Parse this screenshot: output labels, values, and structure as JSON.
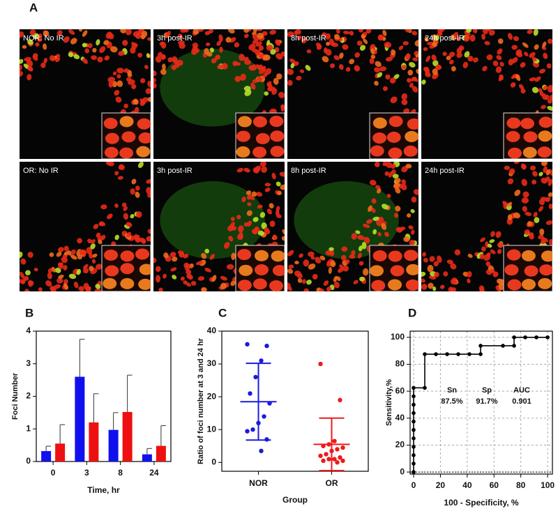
{
  "figure": {
    "panel_label": "A",
    "images": [
      "NOR: No IR",
      "3h post-IR",
      "8h post-IR",
      "24h post-IR",
      "OR: No IR",
      "3h post-IR",
      "8h post-IR",
      "24h post-IR"
    ]
  },
  "chart_data": [
    {
      "type": "bar",
      "panel_label": "B",
      "x_label": "Time, hr",
      "y_label": "Foci Number",
      "categories": [
        "0",
        "3",
        "8",
        "24"
      ],
      "series": [
        {
          "color": "#1010ee",
          "values": [
            0.32,
            2.6,
            0.97,
            0.22
          ],
          "errors": [
            0.15,
            1.15,
            0.53,
            0.18
          ]
        },
        {
          "color": "#ee1010",
          "values": [
            0.55,
            1.2,
            1.52,
            0.48
          ],
          "errors": [
            0.58,
            0.88,
            1.13,
            0.62
          ]
        }
      ],
      "ylim": [
        0,
        4
      ],
      "yticks": [
        0,
        1,
        2,
        3,
        4
      ]
    },
    {
      "type": "dot",
      "panel_label": "C",
      "x_label": "Group",
      "y_label": "Ratio of foci number at 3 and 24 hr",
      "groups": [
        {
          "name": "NOR",
          "color": "#1a1add",
          "values": [
            36,
            35.5,
            31,
            26,
            21,
            18,
            14,
            12,
            10,
            9.5,
            7,
            3.5
          ],
          "mean": 18.5,
          "sd": 11.7
        },
        {
          "name": "OR",
          "color": "#ee1a1a",
          "values": [
            30,
            19,
            6.5,
            5.5,
            5,
            4.5,
            4,
            3.5,
            2.5,
            2,
            1.5,
            1,
            1,
            0.5,
            0.5,
            0
          ],
          "mean": 5.5,
          "sd": 8
        }
      ],
      "ylim": [
        -2.7,
        40
      ],
      "yticks": [
        0,
        10,
        20,
        30,
        40
      ]
    },
    {
      "type": "line",
      "panel_label": "D",
      "x_label": "100 - Specificity, %",
      "y_label": "Sensitivity,%",
      "color": "#000000",
      "grid": true,
      "x": [
        0,
        0,
        0,
        0,
        0,
        0,
        0,
        0,
        0,
        0,
        0,
        8.33,
        8.33,
        16.67,
        25,
        33.33,
        41.67,
        50,
        50,
        66.67,
        75,
        75,
        83.33,
        91.67,
        100
      ],
      "values": [
        0,
        6.25,
        12.5,
        18.75,
        25,
        31.25,
        37.5,
        43.75,
        50,
        56.25,
        62.5,
        62.5,
        87.5,
        87.5,
        87.5,
        87.5,
        87.5,
        87.5,
        93.75,
        93.75,
        93.75,
        100,
        100,
        100,
        100
      ],
      "annotations": [
        "Sn",
        "Sp",
        "AUC",
        "87.5%",
        "91.7%",
        "0.901"
      ],
      "xlim": [
        -2.6,
        103.6
      ],
      "xticks": [
        0,
        20,
        40,
        60,
        80,
        100
      ],
      "ylim": [
        -1.5,
        104.6
      ],
      "yticks": [
        0,
        20,
        40,
        60,
        80,
        100
      ]
    }
  ]
}
